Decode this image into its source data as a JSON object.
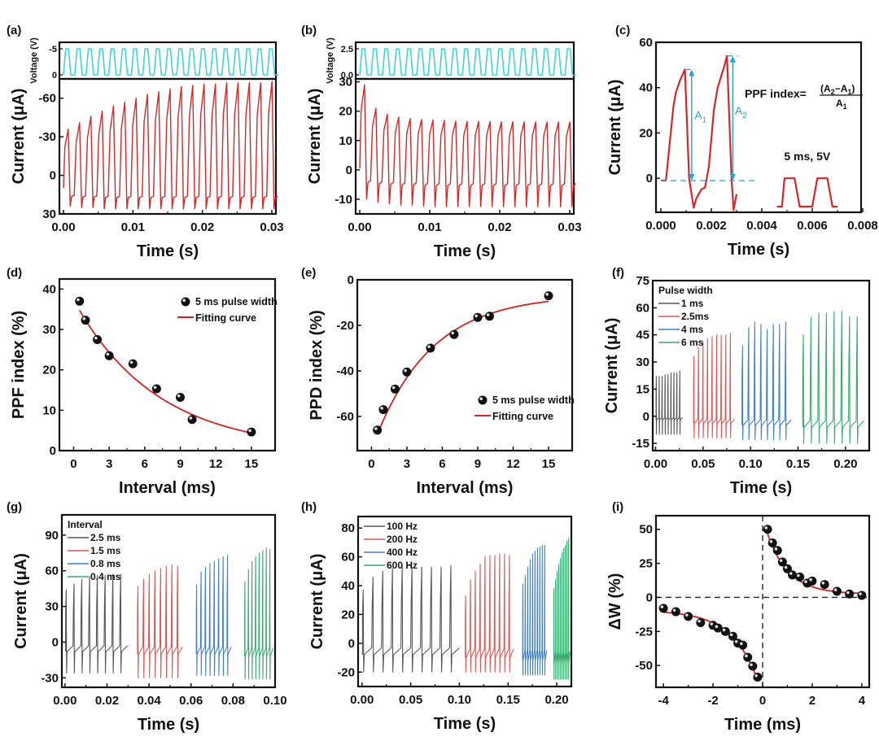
{
  "figure": {
    "panel_labels": [
      "(a)",
      "(b)",
      "(c)",
      "(d)",
      "(e)",
      "(f)",
      "(g)",
      "(h)",
      "(i)"
    ]
  },
  "colors": {
    "red": "#d62728",
    "cyan": "#3fd6d6",
    "blue_annot": "#2a9fd6",
    "gray": "#555555",
    "salmon": "#e05555",
    "blue": "#3f7fd0",
    "green": "#3aaa70",
    "marker": "#111111",
    "fit": "#d62020"
  },
  "chart_data": [
    {
      "id": "a",
      "type": "line",
      "label": "(a)",
      "xlabel": "Time (s)",
      "ylabel": "Current (μA)",
      "xlim": [
        0,
        0.03
      ],
      "xticks": [
        "0.00",
        "0.01",
        "0.02",
        "0.03"
      ],
      "xtick_values": [
        0,
        0.01,
        0.02,
        0.03
      ],
      "ylim": [
        30,
        -75
      ],
      "yaxis_inverted": true,
      "yticks": [
        "-60",
        "-30",
        "0",
        "30"
      ],
      "ytick_values": [
        -60,
        -30,
        0,
        30
      ],
      "inset": {
        "ylabel": "Voltage (V)",
        "yticks": [
          "-5",
          "0"
        ],
        "ytick_values": [
          -5,
          0
        ],
        "pulses": 19,
        "amplitude": -5
      },
      "series": [
        {
          "name": "current",
          "pulses": 19,
          "period": 0.00163,
          "peak_values": [
            -36,
            -41,
            -46,
            -50,
            -54,
            -57,
            -60,
            -63,
            -65,
            -67,
            -69,
            -70,
            -71,
            -71,
            -72,
            -72,
            -72,
            -72,
            -73
          ],
          "trough_values": [
            24,
            25,
            25,
            26,
            26,
            26,
            26,
            26,
            26,
            26,
            26,
            26,
            26,
            26,
            26,
            26,
            26,
            26,
            26
          ],
          "start": 10
        }
      ]
    },
    {
      "id": "b",
      "type": "line",
      "label": "(b)",
      "xlabel": "Time (s)",
      "ylabel": "Current (μA)",
      "xlim": [
        0,
        0.03
      ],
      "xticks": [
        "0.00",
        "0.01",
        "0.02",
        "0.03"
      ],
      "xtick_values": [
        0,
        0.01,
        0.02,
        0.03
      ],
      "ylim": [
        -15,
        31
      ],
      "yticks": [
        "-10",
        "0",
        "10",
        "20",
        "30"
      ],
      "ytick_values": [
        -10,
        0,
        10,
        20,
        30
      ],
      "inset": {
        "ylabel": "Voltage (V)",
        "yticks": [
          "2.5",
          "0.0"
        ],
        "ytick_values": [
          2.5,
          0
        ],
        "pulses": 19,
        "amplitude": 2.5
      },
      "series": [
        {
          "name": "current",
          "pulses": 19,
          "period": 0.00163,
          "peak_values": [
            29,
            21,
            19,
            18,
            17.5,
            17.2,
            17,
            16.8,
            16.6,
            16.5,
            16.5,
            16.5,
            16.4,
            16.4,
            16.4,
            16.3,
            16.3,
            16.3,
            16.3
          ],
          "trough_values": [
            -10,
            -11,
            -11.5,
            -12,
            -12,
            -12.3,
            -12.5,
            -12.5,
            -12.5,
            -12.5,
            -12.5,
            -12.5,
            -12.5,
            -12.5,
            -12.5,
            -12.5,
            -12.5,
            -12.5,
            -12.5
          ],
          "start": 0.5
        }
      ]
    },
    {
      "id": "c",
      "type": "line",
      "label": "(c)",
      "xlabel": "Time (s)",
      "ylabel": "Current (μA)",
      "xlim": [
        0,
        0.008
      ],
      "xticks": [
        "0.000",
        "0.002",
        "0.004",
        "0.006",
        "0.008"
      ],
      "xtick_values": [
        0,
        0.002,
        0.004,
        0.006,
        0.008
      ],
      "ylim": [
        -15,
        60
      ],
      "yticks": [
        "0",
        "20",
        "40",
        "60"
      ],
      "ytick_values": [
        0,
        20,
        40,
        60
      ],
      "series": [
        {
          "name": "current",
          "x": [
            0.0,
            0.0002,
            0.0003,
            0.0005,
            0.0006,
            0.00075,
            0.00095,
            0.00112,
            0.0013,
            0.0014,
            0.0016,
            0.00175,
            0.0019,
            0.0021,
            0.00225,
            0.0025,
            0.00262,
            0.0028,
            0.00288,
            0.003
          ],
          "y": [
            -1,
            -1,
            10,
            32,
            38,
            43,
            48,
            0,
            -13,
            -9,
            -5,
            -4,
            5,
            30,
            40,
            49,
            54,
            0,
            -14,
            -7
          ]
        }
      ],
      "annotations": {
        "A1_label": "A",
        "A1_sub": "1",
        "A2_label": "A",
        "A2_sub": "2",
        "A1_peak": 48,
        "A2_peak": 54,
        "baseline": -1,
        "formula_prefix": "PPF index=",
        "formula_num": "(A",
        "formula_num_sub1": "2",
        "formula_num_mid": "−A",
        "formula_num_sub2": "1",
        "formula_num_end": ")",
        "formula_den": "A",
        "formula_den_sub": "1",
        "pulse_label": "5 ms, 5V"
      }
    },
    {
      "id": "d",
      "type": "scatter",
      "label": "(d)",
      "xlabel": "Interval (ms)",
      "ylabel": "PPF index (%)",
      "xlim": [
        -1.2,
        17
      ],
      "xticks": [
        "0",
        "3",
        "6",
        "9",
        "12",
        "15"
      ],
      "xtick_values": [
        0,
        3,
        6,
        9,
        12,
        15
      ],
      "ylim": [
        0,
        42.5
      ],
      "yticks": [
        "0",
        "10",
        "20",
        "30",
        "40"
      ],
      "ytick_values": [
        0,
        10,
        20,
        30,
        40
      ],
      "legend": [
        "5 ms pulse width",
        "Fitting curve"
      ],
      "legend_position": "top-right",
      "points": {
        "x": [
          0.5,
          1,
          2,
          3,
          5,
          7,
          9,
          10,
          15
        ],
        "y": [
          37,
          32.3,
          27.5,
          23.5,
          21.5,
          15.3,
          13.2,
          7.7,
          4.6
        ]
      },
      "fit": {
        "model": "exponential",
        "a": 37.3,
        "tau": 7.0,
        "y0": 0,
        "x_range": [
          0.5,
          15
        ]
      }
    },
    {
      "id": "e",
      "type": "scatter",
      "label": "(e)",
      "xlabel": "Interval (ms)",
      "ylabel": "PPD index (%)",
      "xlim": [
        -1.2,
        17
      ],
      "xticks": [
        "0",
        "3",
        "6",
        "9",
        "12",
        "15"
      ],
      "xtick_values": [
        0,
        3,
        6,
        9,
        12,
        15
      ],
      "ylim": [
        -75,
        0
      ],
      "yticks": [
        "0",
        "-20",
        "-40",
        "-60"
      ],
      "ytick_values": [
        0,
        -20,
        -40,
        -60
      ],
      "legend": [
        "5 ms pulse width",
        "Fitting curve"
      ],
      "legend_position": "bottom-right",
      "points": {
        "x": [
          0.5,
          1,
          2,
          3,
          5,
          7,
          9,
          10,
          15
        ],
        "y": [
          -66,
          -57,
          -48,
          -40.5,
          -30,
          -24,
          -16.5,
          -16,
          -7
        ]
      },
      "fit": {
        "model": "exponential",
        "a": -68,
        "tau": 4.8,
        "y0": -6.5,
        "x_range": [
          0.5,
          15
        ]
      }
    },
    {
      "id": "f",
      "type": "line",
      "label": "(f)",
      "xlabel": "Time (s)",
      "ylabel": "Current (μA)",
      "xlim": [
        -0.003,
        0.225
      ],
      "xticks": [
        "0.00",
        "0.05",
        "0.10",
        "0.15",
        "0.20"
      ],
      "xtick_values": [
        0,
        0.05,
        0.1,
        0.15,
        0.2
      ],
      "ylim": [
        -19,
        75
      ],
      "yticks": [
        "-15",
        "0",
        "15",
        "30",
        "45",
        "60",
        "75"
      ],
      "ytick_values": [
        -15,
        0,
        15,
        30,
        45,
        60,
        75
      ],
      "legend_title": "Pulse width",
      "legend_position": "top-left",
      "series": [
        {
          "name": "1 ms",
          "color_key": "gray",
          "t0": 0.0005,
          "period": 0.0031,
          "pulses": 9,
          "peaks": [
            22,
            22,
            22,
            23,
            23,
            24,
            24,
            24,
            25
          ],
          "trough": -10,
          "base": -2
        },
        {
          "name": "2.5ms",
          "color_key": "salmon",
          "t0": 0.04,
          "period": 0.0048,
          "pulses": 9,
          "peaks": [
            33,
            38,
            41,
            43,
            44,
            45,
            45,
            45,
            46
          ],
          "trough": -12,
          "base": -4
        },
        {
          "name": "4 ms",
          "color_key": "blue",
          "t0": 0.091,
          "period": 0.0065,
          "pulses": 8,
          "peaks": [
            39,
            49,
            52,
            51,
            48,
            51,
            51,
            52
          ],
          "trough": -13,
          "base": -5
        },
        {
          "name": "6 ms",
          "color_key": "green",
          "t0": 0.155,
          "period": 0.0081,
          "pulses": 8,
          "peaks": [
            45,
            55,
            57,
            57,
            58,
            58,
            55,
            55
          ],
          "trough": -15,
          "base": -6
        }
      ]
    },
    {
      "id": "g",
      "type": "line",
      "label": "(g)",
      "xlabel": "Time (s)",
      "ylabel": "Current (μA)",
      "xlim": [
        -0.0015,
        0.1
      ],
      "xticks": [
        "0.00",
        "0.02",
        "0.04",
        "0.06",
        "0.08",
        "0.10"
      ],
      "xtick_values": [
        0,
        0.02,
        0.04,
        0.06,
        0.08,
        0.1
      ],
      "ylim": [
        -38,
        107
      ],
      "yticks": [
        "-30",
        "0",
        "30",
        "60",
        "90"
      ],
      "ytick_values": [
        -30,
        0,
        30,
        60,
        90
      ],
      "legend_title": "Interval",
      "legend_position": "top-left",
      "series": [
        {
          "name": "2.5 ms",
          "color_key": "gray",
          "t0": 0.0003,
          "period": 0.0037,
          "pulses": 8,
          "peaks": [
            44,
            49,
            53,
            55,
            56,
            56,
            57,
            57
          ],
          "trough": -26,
          "base": -8
        },
        {
          "name": "1.5 ms",
          "color_key": "salmon",
          "t0": 0.0345,
          "period": 0.0027,
          "pulses": 8,
          "peaks": [
            47,
            53,
            57,
            60,
            62,
            64,
            65,
            64
          ],
          "trough": -30,
          "base": -10
        },
        {
          "name": "0.8 ms",
          "color_key": "blue",
          "t0": 0.0625,
          "period": 0.0021,
          "pulses": 8,
          "peaks": [
            48,
            59,
            63,
            66,
            68,
            70,
            72,
            73
          ],
          "trough": -28,
          "base": -10
        },
        {
          "name": "0.4 ms",
          "color_key": "green",
          "t0": 0.0855,
          "period": 0.0017,
          "pulses": 8,
          "peaks": [
            51,
            61,
            68,
            72,
            75,
            77,
            79,
            78
          ],
          "trough": -31,
          "base": -12
        }
      ]
    },
    {
      "id": "h",
      "type": "line",
      "label": "(h)",
      "xlabel": "Time (s)",
      "ylabel": "Current (μA)",
      "xlim": [
        -0.004,
        0.215
      ],
      "xticks": [
        "0.00",
        "0.05",
        "0.10",
        "0.15",
        "0.20"
      ],
      "xtick_values": [
        0,
        0.05,
        0.1,
        0.15,
        0.2
      ],
      "ylim": [
        -30,
        88
      ],
      "yticks": [
        "-20",
        "0",
        "20",
        "40",
        "60",
        "80"
      ],
      "ytick_values": [
        -20,
        0,
        20,
        40,
        60,
        80
      ],
      "legend_title": "",
      "legend_position": "top-left",
      "series": [
        {
          "name": "100 Hz",
          "color_key": "gray",
          "t0": 0.0005,
          "period": 0.01,
          "pulses": 10,
          "peaks": [
            37,
            46,
            50,
            52,
            53,
            53,
            53,
            53,
            53,
            54
          ],
          "trough": -20,
          "base": -8
        },
        {
          "name": "200 Hz",
          "color_key": "salmon",
          "t0": 0.106,
          "period": 0.005,
          "pulses": 10,
          "peaks": [
            33,
            44,
            50,
            55,
            60,
            61,
            61,
            62,
            62,
            61
          ],
          "trough": -20,
          "base": -10
        },
        {
          "name": "400 Hz",
          "color_key": "blue",
          "t0": 0.165,
          "period": 0.0025,
          "pulses": 10,
          "peaks": [
            41,
            47,
            53,
            58,
            62,
            64,
            66,
            67,
            68,
            68
          ],
          "trough": -22,
          "base": -12
        },
        {
          "name": "600 Hz",
          "color_key": "green",
          "t0": 0.197,
          "period": 0.00167,
          "pulses": 10,
          "peaks": [
            38,
            44,
            50,
            55,
            59,
            63,
            66,
            68,
            71,
            73
          ],
          "trough": -25,
          "base": -14
        }
      ]
    },
    {
      "id": "i",
      "type": "scatter",
      "label": "(i)",
      "xlabel": "Time (ms)",
      "ylabel": "ΔW (%)",
      "xlim": [
        -4.3,
        4.3
      ],
      "xticks": [
        "-4",
        "-2",
        "0",
        "2",
        "4"
      ],
      "xtick_values": [
        -4,
        -2,
        0,
        2,
        4
      ],
      "ylim": [
        -66,
        60
      ],
      "yticks": [
        "-50",
        "-25",
        "0",
        "25",
        "50"
      ],
      "ytick_values": [
        -50,
        -25,
        0,
        25,
        50
      ],
      "points_negative": {
        "x": [
          -4,
          -3.5,
          -3,
          -2.5,
          -2,
          -1.8,
          -1.5,
          -1.2,
          -1,
          -0.8,
          -0.6,
          -0.4,
          -0.2
        ],
        "y": [
          -8,
          -10.5,
          -14,
          -18.5,
          -20.5,
          -22.5,
          -25,
          -28.5,
          -33.5,
          -35,
          -44,
          -50.5,
          -58.5
        ]
      },
      "points_positive": {
        "x": [
          0.2,
          0.4,
          0.6,
          0.8,
          1,
          1.2,
          1.5,
          1.8,
          2,
          2.5,
          3,
          3.5,
          4
        ],
        "y": [
          50,
          40,
          34.5,
          26,
          21,
          16.5,
          15,
          10.5,
          12,
          9.5,
          4.5,
          2.5,
          1.5
        ]
      },
      "fit_negative": {
        "model": "exponential",
        "a": -62,
        "tau": 1.05,
        "y0": -9.5,
        "x_range": [
          -4,
          -0.2
        ]
      },
      "fit_positive": {
        "model": "exponential",
        "a": 56,
        "tau": 0.85,
        "y0": 2.5,
        "x_range": [
          0.2,
          4
        ]
      },
      "reference_lines": {
        "x": 0,
        "y": 0
      }
    }
  ]
}
